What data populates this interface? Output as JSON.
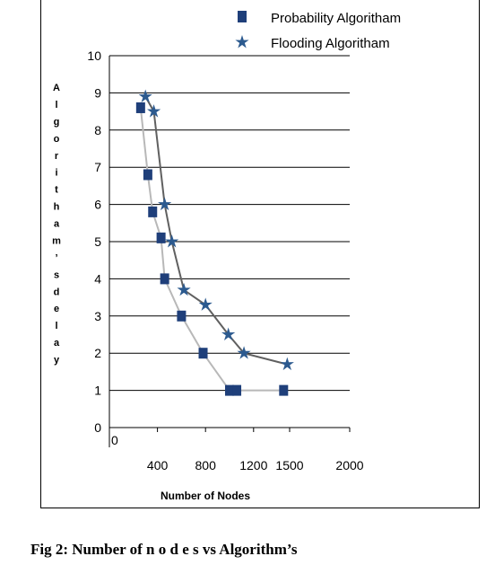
{
  "caption": "Fig 2:  Number of n o d e s  vs Algorithm’s",
  "chart_data": {
    "type": "line",
    "xlabel": "Number of Nodes",
    "ylabel": "Algoritham's delay",
    "x_ticks": [
      "0",
      "400",
      "800",
      "1200",
      "1500",
      "2000"
    ],
    "y_ticks": [
      "0",
      "1",
      "2",
      "3",
      "4",
      "5",
      "6",
      "7",
      "8",
      "9",
      "10"
    ],
    "xlim": [
      0,
      2000
    ],
    "ylim": [
      0,
      10
    ],
    "grid": "horizontal",
    "legend_position": "top-right",
    "series": [
      {
        "name": "Probability Algoritham",
        "marker": "square",
        "color": "#1f3f7a",
        "line_color": "#b8b8b8",
        "points": [
          [
            260,
            8.6
          ],
          [
            320,
            6.8
          ],
          [
            360,
            5.8
          ],
          [
            430,
            5.1
          ],
          [
            460,
            4.0
          ],
          [
            600,
            3.0
          ],
          [
            780,
            2.0
          ],
          [
            1000,
            1.0
          ],
          [
            1060,
            1.0
          ],
          [
            1450,
            1.0
          ]
        ]
      },
      {
        "name": "Flooding Algoritham",
        "marker": "star",
        "color": "#2c5a8f",
        "line_color": "#606060",
        "points": [
          [
            300,
            8.9
          ],
          [
            370,
            8.5
          ],
          [
            460,
            6.0
          ],
          [
            520,
            5.0
          ],
          [
            620,
            3.7
          ],
          [
            800,
            3.3
          ],
          [
            990,
            2.5
          ],
          [
            1120,
            2.0
          ],
          [
            1480,
            1.7
          ]
        ]
      }
    ]
  }
}
